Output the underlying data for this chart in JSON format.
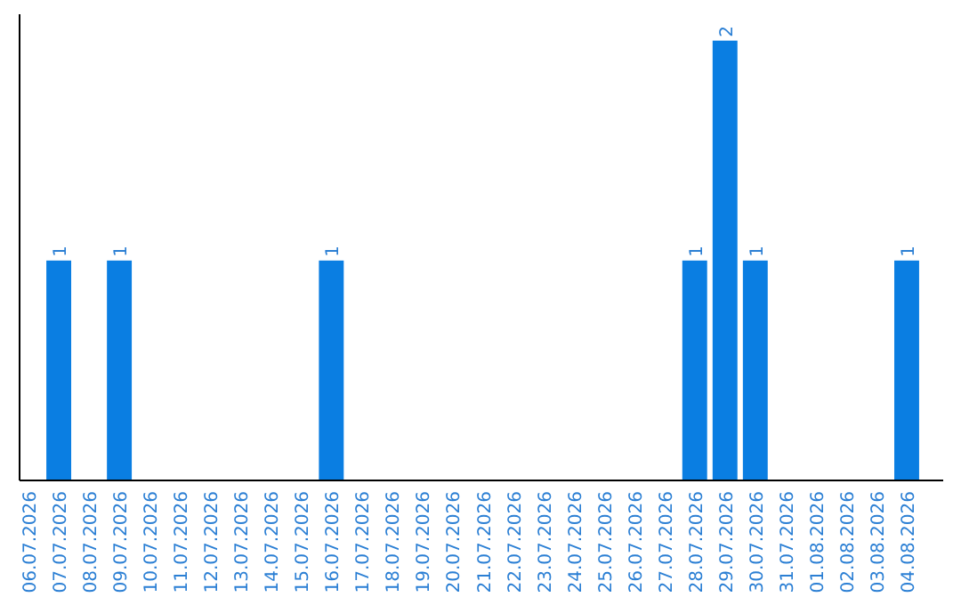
{
  "chart_data": {
    "type": "bar",
    "categories": [
      "06.07.2026",
      "07.07.2026",
      "08.07.2026",
      "09.07.2026",
      "10.07.2026",
      "11.07.2026",
      "12.07.2026",
      "13.07.2026",
      "14.07.2026",
      "15.07.2026",
      "16.07.2026",
      "17.07.2026",
      "18.07.2026",
      "19.07.2026",
      "20.07.2026",
      "21.07.2026",
      "22.07.2026",
      "23.07.2026",
      "24.07.2026",
      "25.07.2026",
      "26.07.2026",
      "27.07.2026",
      "28.07.2026",
      "29.07.2026",
      "30.07.2026",
      "31.07.2026",
      "01.08.2026",
      "02.08.2026",
      "03.08.2026",
      "04.08.2026"
    ],
    "values": [
      0,
      1,
      0,
      1,
      0,
      0,
      0,
      0,
      0,
      0,
      1,
      0,
      0,
      0,
      0,
      0,
      0,
      0,
      0,
      0,
      0,
      0,
      1,
      2,
      1,
      0,
      0,
      0,
      0,
      1
    ],
    "value_labels": [
      null,
      "1",
      null,
      "1",
      null,
      null,
      null,
      null,
      null,
      null,
      "1",
      null,
      null,
      null,
      null,
      null,
      null,
      null,
      null,
      null,
      null,
      null,
      "1",
      "2",
      "1",
      null,
      null,
      null,
      null,
      "1"
    ],
    "color": "#0a7ee2"
  }
}
